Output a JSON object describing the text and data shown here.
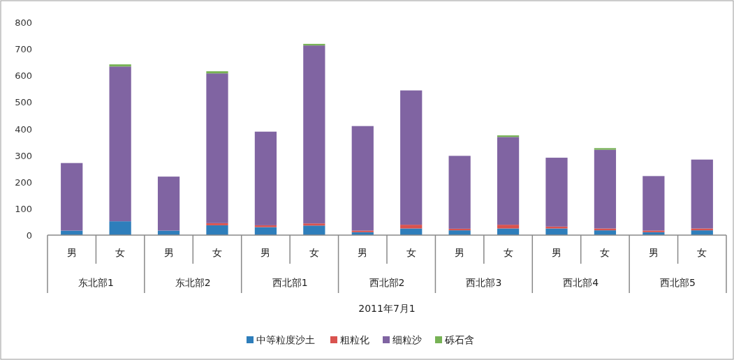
{
  "chart_data": {
    "type": "bar",
    "stacked": true,
    "xlabel": "2011年7月1",
    "categories": [
      "男",
      "女",
      "男",
      "女",
      "男",
      "女",
      "男",
      "女",
      "男",
      "女",
      "男",
      "女",
      "男",
      "女"
    ],
    "annotations": [
      "东北部1",
      "东北部2",
      "西北部1",
      "西北部2",
      "西北部3",
      "西北部4",
      "西北部5"
    ],
    "series": [
      {
        "name": "中等粒度沙土",
        "color": "#2e7ebb",
        "values": [
          17,
          52,
          17,
          37,
          30,
          36,
          11,
          25,
          18,
          25,
          25,
          18,
          11,
          18
        ]
      },
      {
        "name": "粗粒化",
        "color": "#d9534f",
        "values": [
          0,
          0,
          0,
          8,
          7,
          8,
          6,
          14,
          6,
          14,
          7,
          7,
          6,
          7
        ]
      },
      {
        "name": "细粒沙",
        "color": "#8064a2",
        "values": [
          254,
          582,
          203,
          563,
          352,
          669,
          393,
          505,
          274,
          330,
          259,
          296,
          205,
          259
        ]
      },
      {
        "name": "砾石含",
        "color": "#77b255",
        "values": [
          0,
          8,
          0,
          8,
          0,
          6,
          0,
          0,
          0,
          6,
          0,
          6,
          0,
          0
        ]
      }
    ],
    "ylim": [
      0,
      800
    ],
    "yticks": [
      0,
      100,
      200,
      300,
      400,
      500,
      600,
      700,
      800
    ],
    "grid": false,
    "legend": "bottom"
  }
}
